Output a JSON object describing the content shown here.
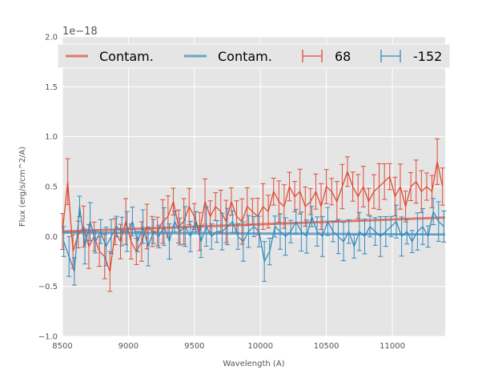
{
  "chart_data": {
    "type": "line",
    "title": "",
    "xlabel": "Wavelength (A)",
    "ylabel": "Flux (erg/s/cm^2/A)",
    "y_offset_label": "1e−18",
    "xlim": [
      8500,
      11400
    ],
    "ylim": [
      -1.0,
      2.0
    ],
    "x_ticks": [
      8500,
      9000,
      9500,
      10000,
      10500,
      11000
    ],
    "x_tick_labels": [
      "8500",
      "9000",
      "9500",
      "10000",
      "10500",
      "11000"
    ],
    "y_ticks": [
      -1.0,
      -0.5,
      0.0,
      0.5,
      1.0,
      1.5,
      2.0
    ],
    "y_tick_labels": [
      "−1.0",
      "−0.5",
      "0.0",
      "0.5",
      "1.0",
      "1.5",
      "2.0"
    ],
    "grid": true,
    "legend_position": "top, spanning full width",
    "series": [
      {
        "name": "68",
        "color": "#E24A33",
        "x": [
          8500,
          8540,
          8580,
          8620,
          8660,
          8700,
          8740,
          8780,
          8820,
          8860,
          8900,
          8940,
          8980,
          9020,
          9060,
          9100,
          9140,
          9180,
          9220,
          9260,
          9300,
          9340,
          9380,
          9420,
          9460,
          9500,
          9540,
          9580,
          9620,
          9660,
          9700,
          9740,
          9780,
          9820,
          9860,
          9900,
          9940,
          9980,
          10020,
          10060,
          10100,
          10140,
          10180,
          10220,
          10260,
          10300,
          10340,
          10380,
          10420,
          10460,
          10500,
          10540,
          10580,
          10620,
          10660,
          10700,
          10740,
          10780,
          10820,
          10860,
          10900,
          10940,
          10980,
          11020,
          11060,
          11100,
          11140,
          11180,
          11220,
          11260,
          11300,
          11340,
          11380
        ],
        "y": [
          0.05,
          0.55,
          -0.15,
          0.02,
          0.1,
          -0.1,
          0.0,
          -0.15,
          -0.2,
          -0.35,
          0.05,
          -0.05,
          0.15,
          -0.05,
          -0.15,
          -0.05,
          0.1,
          0.05,
          0.05,
          0.15,
          0.2,
          0.35,
          0.1,
          0.15,
          0.3,
          0.2,
          0.05,
          0.35,
          0.2,
          0.3,
          0.25,
          0.15,
          0.35,
          0.2,
          0.15,
          0.3,
          0.25,
          0.2,
          0.3,
          0.25,
          0.45,
          0.35,
          0.3,
          0.5,
          0.4,
          0.45,
          0.3,
          0.35,
          0.45,
          0.3,
          0.5,
          0.45,
          0.35,
          0.5,
          0.65,
          0.5,
          0.4,
          0.5,
          0.35,
          0.45,
          0.5,
          0.55,
          0.6,
          0.4,
          0.5,
          0.3,
          0.5,
          0.55,
          0.45,
          0.5,
          0.45,
          0.75,
          0.5
        ],
        "err": 0.18
      },
      {
        "name": "-152",
        "color": "#348ABD",
        "x": [
          8510,
          8550,
          8590,
          8630,
          8670,
          8710,
          8750,
          8790,
          8830,
          8870,
          8910,
          8950,
          8990,
          9030,
          9070,
          9110,
          9150,
          9190,
          9230,
          9270,
          9310,
          9350,
          9390,
          9430,
          9470,
          9510,
          9550,
          9590,
          9630,
          9670,
          9710,
          9750,
          9790,
          9830,
          9870,
          9910,
          9950,
          9990,
          10030,
          10070,
          10110,
          10150,
          10190,
          10230,
          10270,
          10310,
          10350,
          10390,
          10430,
          10470,
          10510,
          10550,
          10590,
          10630,
          10670,
          10710,
          10750,
          10790,
          10830,
          10870,
          10910,
          10950,
          10990,
          11030,
          11070,
          11110,
          11150,
          11190,
          11230,
          11270,
          11310,
          11350,
          11390
        ],
        "y": [
          -0.05,
          -0.2,
          -0.35,
          0.3,
          -0.1,
          0.15,
          -0.05,
          0.05,
          -0.1,
          0.0,
          0.1,
          0.05,
          0.05,
          0.15,
          -0.05,
          0.1,
          -0.1,
          0.05,
          0.0,
          0.1,
          -0.05,
          0.15,
          0.05,
          0.1,
          0.0,
          0.15,
          -0.05,
          0.1,
          0.0,
          0.05,
          0.05,
          0.1,
          0.15,
          0.0,
          -0.05,
          0.05,
          0.1,
          0.05,
          -0.25,
          -0.15,
          0.1,
          0.05,
          0.0,
          0.05,
          0.15,
          0.05,
          0.0,
          0.2,
          0.05,
          0.0,
          0.15,
          0.05,
          0.0,
          -0.05,
          0.05,
          -0.1,
          0.05,
          0.0,
          0.1,
          0.05,
          0.0,
          0.05,
          0.1,
          0.15,
          0.0,
          0.05,
          -0.05,
          0.05,
          0.1,
          0.0,
          0.25,
          0.15,
          0.1
        ],
        "err": 0.15
      },
      {
        "name": "Contam.",
        "color": "#E24A33",
        "style": "thick-line",
        "x": [
          8500,
          11400
        ],
        "y": [
          0.05,
          0.19
        ]
      },
      {
        "name": "Contam.",
        "color": "#348ABD",
        "style": "thick-line",
        "x": [
          8500,
          11400
        ],
        "y": [
          0.04,
          0.02
        ]
      }
    ],
    "legend": [
      {
        "label": "Contam.",
        "color": "#E24A33",
        "kind": "line"
      },
      {
        "label": "Contam.",
        "color": "#348ABD",
        "kind": "line"
      },
      {
        "label": "68",
        "color": "#E24A33",
        "kind": "errorbar"
      },
      {
        "label": "-152",
        "color": "#348ABD",
        "kind": "errorbar"
      }
    ]
  }
}
